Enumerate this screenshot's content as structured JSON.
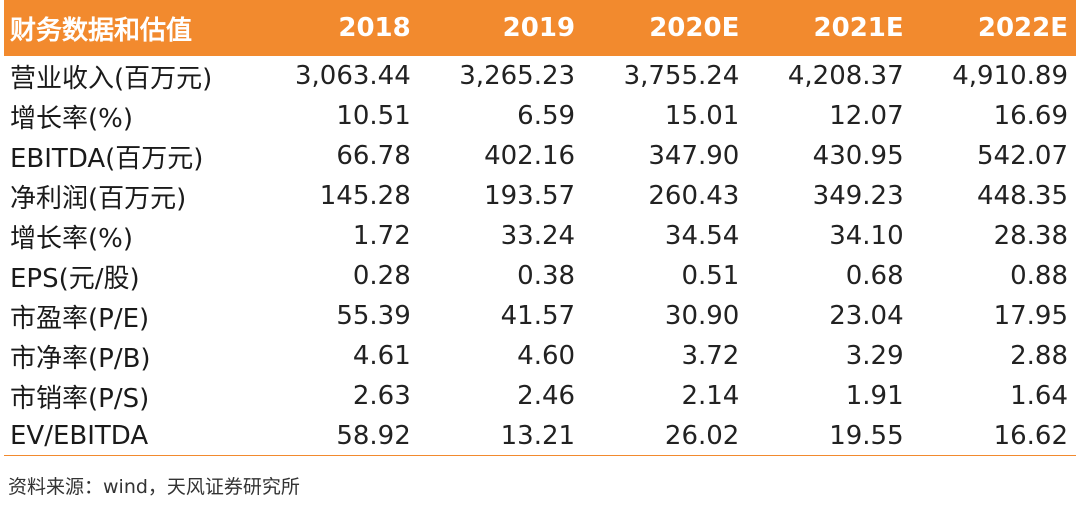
{
  "table": {
    "headers": [
      "财务数据和估值",
      "2018",
      "2019",
      "2020E",
      "2021E",
      "2022E"
    ],
    "rows": [
      {
        "label": "营业收入(百万元)",
        "values": [
          "3,063.44",
          "3,265.23",
          "3,755.24",
          "4,208.37",
          "4,910.89"
        ]
      },
      {
        "label": "增长率(%)",
        "values": [
          "10.51",
          "6.59",
          "15.01",
          "12.07",
          "16.69"
        ]
      },
      {
        "label": "EBITDA(百万元)",
        "values": [
          "66.78",
          "402.16",
          "347.90",
          "430.95",
          "542.07"
        ]
      },
      {
        "label": "净利润(百万元)",
        "values": [
          "145.28",
          "193.57",
          "260.43",
          "349.23",
          "448.35"
        ]
      },
      {
        "label": "增长率(%)",
        "values": [
          "1.72",
          "33.24",
          "34.54",
          "34.10",
          "28.38"
        ]
      },
      {
        "label": "EPS(元/股)",
        "values": [
          "0.28",
          "0.38",
          "0.51",
          "0.68",
          "0.88"
        ]
      },
      {
        "label": "市盈率(P/E)",
        "values": [
          "55.39",
          "41.57",
          "30.90",
          "23.04",
          "17.95"
        ]
      },
      {
        "label": "市净率(P/B)",
        "values": [
          "4.61",
          "4.60",
          "3.72",
          "3.29",
          "2.88"
        ]
      },
      {
        "label": "市销率(P/S)",
        "values": [
          "2.63",
          "2.46",
          "2.14",
          "1.91",
          "1.64"
        ]
      },
      {
        "label": "EV/EBITDA",
        "values": [
          "58.92",
          "13.21",
          "26.02",
          "19.55",
          "16.62"
        ]
      }
    ]
  },
  "source": "资料来源：wind，天风证券研究所",
  "colors": {
    "header_bg": "#f28a2e",
    "header_text": "#ffffff",
    "rule": "#f28a2e"
  }
}
